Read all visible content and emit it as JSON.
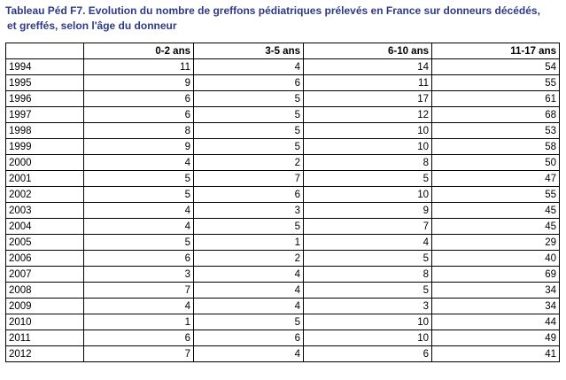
{
  "title": {
    "line1": "Tableau Péd F7. Evolution du nombre de greffons pédiatriques prélevés en France sur donneurs décédés,",
    "line2": "et greffés, selon l'âge du donneur"
  },
  "table": {
    "headers": [
      "",
      "0-2 ans",
      "3-5 ans",
      "6-10 ans",
      "11-17 ans"
    ],
    "rows": [
      [
        "1994",
        "11",
        "4",
        "14",
        "54"
      ],
      [
        "1995",
        "9",
        "6",
        "11",
        "55"
      ],
      [
        "1996",
        "6",
        "5",
        "17",
        "61"
      ],
      [
        "1997",
        "6",
        "5",
        "12",
        "68"
      ],
      [
        "1998",
        "8",
        "5",
        "10",
        "53"
      ],
      [
        "1999",
        "9",
        "5",
        "10",
        "58"
      ],
      [
        "2000",
        "4",
        "2",
        "8",
        "50"
      ],
      [
        "2001",
        "5",
        "7",
        "5",
        "47"
      ],
      [
        "2002",
        "5",
        "6",
        "10",
        "55"
      ],
      [
        "2003",
        "4",
        "3",
        "9",
        "45"
      ],
      [
        "2004",
        "4",
        "5",
        "7",
        "45"
      ],
      [
        "2005",
        "5",
        "1",
        "4",
        "29"
      ],
      [
        "2006",
        "6",
        "2",
        "5",
        "40"
      ],
      [
        "2007",
        "3",
        "4",
        "8",
        "69"
      ],
      [
        "2008",
        "7",
        "4",
        "5",
        "34"
      ],
      [
        "2009",
        "4",
        "4",
        "3",
        "34"
      ],
      [
        "2010",
        "1",
        "5",
        "10",
        "44"
      ],
      [
        "2011",
        "6",
        "6",
        "10",
        "49"
      ],
      [
        "2012",
        "7",
        "4",
        "6",
        "41"
      ]
    ]
  },
  "colors": {
    "title": "#2e3a87",
    "border": "#000000",
    "text": "#000000"
  }
}
